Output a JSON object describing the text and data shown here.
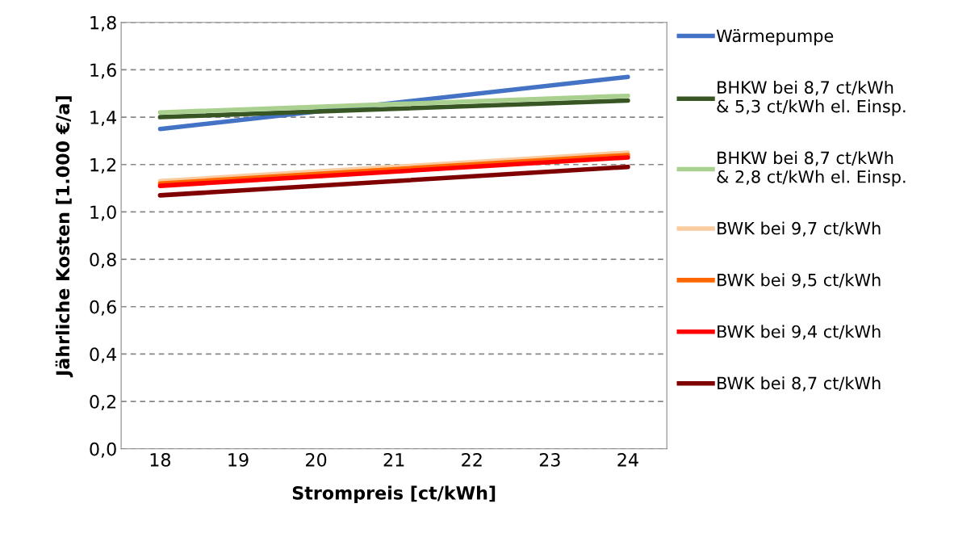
{
  "chart_data": {
    "type": "line",
    "xlabel": "Strompreis [ct/kWh]",
    "ylabel": "Jährliche Kosten [1.000 €/a]",
    "xlim": [
      17.5,
      24.5
    ],
    "xticks": [
      18,
      19,
      20,
      21,
      22,
      23,
      24
    ],
    "ylim": [
      0,
      1.8
    ],
    "yticks": [
      {
        "value": 0,
        "label": "0,0"
      },
      {
        "value": 0.2,
        "label": "0,2"
      },
      {
        "value": 0.4,
        "label": "0,4"
      },
      {
        "value": 0.6,
        "label": "0,6"
      },
      {
        "value": 0.8,
        "label": "0,8"
      },
      {
        "value": 1.0,
        "label": "1,0"
      },
      {
        "value": 1.2,
        "label": "1,2"
      },
      {
        "value": 1.4,
        "label": "1,4"
      },
      {
        "value": 1.6,
        "label": "1,6"
      },
      {
        "value": 1.8,
        "label": "1,8"
      }
    ],
    "x": [
      18,
      24
    ],
    "grid": "y",
    "legend": "right",
    "marker": "none",
    "line_style": "solid",
    "series": [
      {
        "name": "Wärmepumpe",
        "color": "#4472c4",
        "values": [
          1.35,
          1.57
        ]
      },
      {
        "name": "BHKW bei 8,7 ct/kWh\n& 5,3 ct/kWh el. Einsp.",
        "color": "#375623",
        "values": [
          1.4,
          1.47
        ]
      },
      {
        "name": "BHKW bei 8,7 ct/kWh\n& 2,8 ct/kWh el. Einsp.",
        "color": "#a9d08e",
        "values": [
          1.42,
          1.49
        ]
      },
      {
        "name": "BWK bei 9,7 ct/kWh",
        "color": "#f8cba0",
        "values": [
          1.13,
          1.25
        ]
      },
      {
        "name": "BWK bei 9,5 ct/kWh",
        "color": "#ff6600",
        "values": [
          1.12,
          1.24
        ]
      },
      {
        "name": "BWK bei 9,4 ct/kWh",
        "color": "#ff0000",
        "values": [
          1.11,
          1.23
        ]
      },
      {
        "name": "BWK bei 8,7 ct/kWh",
        "color": "#7f0000",
        "values": [
          1.07,
          1.19
        ]
      }
    ]
  }
}
